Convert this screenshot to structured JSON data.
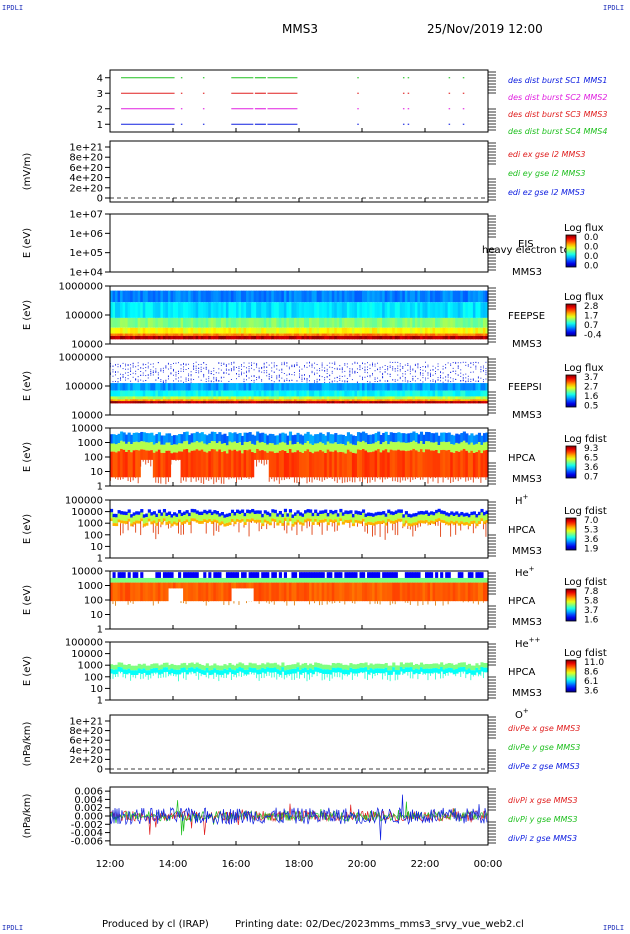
{
  "corner_marks": [
    "IPDLI",
    "IPDLI",
    "IPDLI",
    "IPDLI"
  ],
  "header": {
    "spacecraft": "MMS3",
    "datetime": "25/Nov/2019 12:00"
  },
  "footer": {
    "producer": "Produced by cl (IRAP)",
    "printed": "Printing date: 02/Dec/2023",
    "file": "mms_mms3_srvy_vue_web2.cl"
  },
  "colors": {
    "red": "#e02020",
    "green": "#20c020",
    "blue": "#1020e0",
    "magenta": "#e020e0",
    "black": "#000000"
  },
  "chart_data": {
    "type": "multi-panel time series",
    "x_range": [
      "12:00",
      "00:00"
    ],
    "x_ticks": [
      "12:00",
      "14:00",
      "16:00",
      "18:00",
      "20:00",
      "22:00",
      "00:00"
    ],
    "panels": [
      {
        "type": "line",
        "ylabel": "",
        "ylim": [
          0.5,
          4.5
        ],
        "ticks": [
          "4",
          "3",
          "2",
          "1"
        ],
        "legend": [
          {
            "text": "des dist burst SC1 MMS1",
            "color": "#1020e0"
          },
          {
            "text": "des dist burst SC2 MMS2",
            "color": "#e020e0"
          },
          {
            "text": "des dist burst SC3 MMS3",
            "color": "#e02020"
          },
          {
            "text": "des dist burst SC4 MMS4",
            "color": "#20c020"
          }
        ],
        "series": [
          {
            "level": 4,
            "color": "#20c020"
          },
          {
            "level": 3,
            "color": "#e02020"
          },
          {
            "level": 2,
            "color": "#e020e0"
          },
          {
            "level": 1,
            "color": "#1020e0"
          }
        ],
        "intervals_hours": [
          [
            12.35,
            14.05
          ],
          [
            14.25,
            14.28
          ],
          [
            14.95,
            14.98
          ],
          [
            15.85,
            16.55
          ],
          [
            16.6,
            16.95
          ],
          [
            17.0,
            17.95
          ],
          [
            19.85,
            19.87
          ],
          [
            21.3,
            21.33
          ],
          [
            21.45,
            21.48
          ],
          [
            22.75,
            22.78
          ],
          [
            23.2,
            23.23
          ]
        ]
      },
      {
        "type": "line",
        "ylabel": "(mV/m)",
        "ticks": [
          "1e+21",
          "8e+20",
          "6e+20",
          "4e+20",
          "2e+20",
          "0"
        ],
        "legend": [
          {
            "text": "edi ex gse l2 MMS3",
            "color": "#e02020"
          },
          {
            "text": "edi ey gse l2 MMS3",
            "color": "#20c020"
          },
          {
            "text": "edi ez gse l2 MMS3",
            "color": "#1020e0"
          }
        ]
      },
      {
        "type": "heatmap",
        "ylabel": "E (eV)",
        "scale": "log",
        "ticks": [
          "1e+07",
          "1e+06",
          "1e+05",
          "1e+04"
        ],
        "instrument": "EIS",
        "overlay_text": "heavy electron tof",
        "sc": "MMS3",
        "cbar_title": "Log flux",
        "cbar_ticks": [
          "0.0",
          "0.0",
          "0.0",
          "0.0"
        ]
      },
      {
        "type": "heatmap",
        "ylabel": "E (eV)",
        "scale": "log",
        "ticks": [
          "1000000",
          "100000",
          "10000"
        ],
        "instrument": "FEEPSE",
        "sc": "MMS3",
        "cbar_title": "Log flux",
        "cbar_ticks": [
          "2.8",
          "1.7",
          "0.7",
          "-0.4"
        ]
      },
      {
        "type": "heatmap",
        "ylabel": "E (eV)",
        "scale": "log",
        "ticks": [
          "1000000",
          "100000",
          "10000"
        ],
        "instrument": "FEEPSI",
        "sc": "MMS3",
        "cbar_title": "Log flux",
        "cbar_ticks": [
          "3.7",
          "2.7",
          "1.6",
          "0.5"
        ]
      },
      {
        "type": "heatmap",
        "ylabel": "E (eV)",
        "scale": "log",
        "ticks": [
          "10000",
          "1000",
          "100",
          "10",
          "1"
        ],
        "instrument": "HPCA",
        "sc": "MMS3",
        "species": "H",
        "charge": "+",
        "cbar_title": "Log fdist",
        "cbar_ticks": [
          "9.3",
          "6.5",
          "3.6",
          "0.7"
        ]
      },
      {
        "type": "heatmap",
        "ylabel": "E (eV)",
        "scale": "log",
        "ticks": [
          "100000",
          "10000",
          "1000",
          "100",
          "10",
          "1"
        ],
        "instrument": "HPCA",
        "sc": "MMS3",
        "species": "He",
        "charge": "+",
        "cbar_title": "Log fdist",
        "cbar_ticks": [
          "7.0",
          "5.3",
          "3.6",
          "1.9"
        ]
      },
      {
        "type": "heatmap",
        "ylabel": "E (eV)",
        "scale": "log",
        "ticks": [
          "10000",
          "1000",
          "100",
          "10",
          "1"
        ],
        "instrument": "HPCA",
        "sc": "MMS3",
        "species": "He",
        "charge": "++",
        "cbar_title": "Log fdist",
        "cbar_ticks": [
          "7.8",
          "5.8",
          "3.7",
          "1.6"
        ]
      },
      {
        "type": "heatmap",
        "ylabel": "E (eV)",
        "scale": "log",
        "ticks": [
          "100000",
          "10000",
          "1000",
          "100",
          "10",
          "1"
        ],
        "instrument": "HPCA",
        "sc": "MMS3",
        "species": "O",
        "charge": "+",
        "cbar_title": "Log fdist",
        "cbar_ticks": [
          "11.0",
          "8.6",
          "6.1",
          "3.6"
        ]
      },
      {
        "type": "line",
        "ylabel": "(nPa/km)",
        "ticks": [
          "1e+21",
          "8e+20",
          "6e+20",
          "4e+20",
          "2e+20",
          "0"
        ],
        "legend": [
          {
            "text": "divPe x gse MMS3",
            "color": "#e02020"
          },
          {
            "text": "divPe y gse MMS3",
            "color": "#20c020"
          },
          {
            "text": "divPe z gse MMS3",
            "color": "#1020e0"
          }
        ]
      },
      {
        "type": "line",
        "ylabel": "(nPa/km)",
        "ylim": [
          -0.007,
          0.007
        ],
        "ticks": [
          "0.006",
          "0.004",
          "0.002",
          "0.000",
          "-0.002",
          "-0.004",
          "-0.006"
        ],
        "legend": [
          {
            "text": "divPi x gse MMS3",
            "color": "#e02020"
          },
          {
            "text": "divPi y gse MMS3",
            "color": "#20c020"
          },
          {
            "text": "divPi z gse MMS3",
            "color": "#1020e0"
          }
        ]
      }
    ]
  }
}
